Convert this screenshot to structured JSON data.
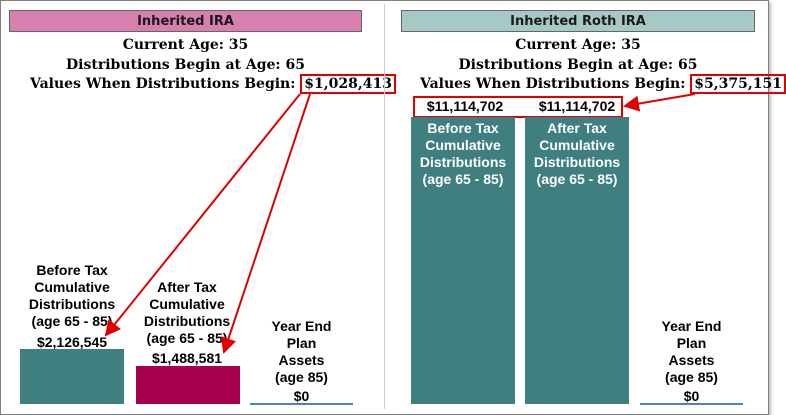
{
  "chart_data": [
    {
      "type": "bar",
      "title": "Inherited IRA",
      "current_age_label": "Current Age: 35",
      "dist_age_label": "Distributions Begin at Age: 65",
      "value_label": "Values When Distributions Begin:",
      "value_at_start": "$1,028,413",
      "categories": [
        "Before Tax\nCumulative\nDistributions\n(age 65 - 85)",
        "After Tax\nCumulative\nDistributions\n(age 65 - 85)",
        "Year End\nPlan\nAssets\n(age 85)"
      ],
      "values": [
        2126545,
        1488581,
        0
      ],
      "value_labels": [
        "$2,126,545",
        "$1,488,581",
        "$0"
      ],
      "bar_colors": [
        "#3f7f7f",
        "#a8004f",
        "#4f81bd"
      ],
      "banner_color": "#d97fb0"
    },
    {
      "type": "bar",
      "title": "Inherited Roth IRA",
      "current_age_label": "Current Age: 35",
      "dist_age_label": "Distributions Begin at Age: 65",
      "value_label": "Values When Distributions Begin:",
      "value_at_start": "$5,375,151",
      "categories": [
        "Before Tax\nCumulative\nDistributions\n(age 65 - 85)",
        "After Tax\nCumulative\nDistributions\n(age 65 - 85)",
        "Year End\nPlan\nAssets\n(age 85)"
      ],
      "values": [
        11114702,
        11114702,
        0
      ],
      "value_labels": [
        "$11,114,702",
        "$11,114,702",
        "$0"
      ],
      "bar_colors": [
        "#3f7f7f",
        "#3f7f7f",
        "#4f81bd"
      ],
      "banner_color": "#a6c9c5"
    }
  ]
}
